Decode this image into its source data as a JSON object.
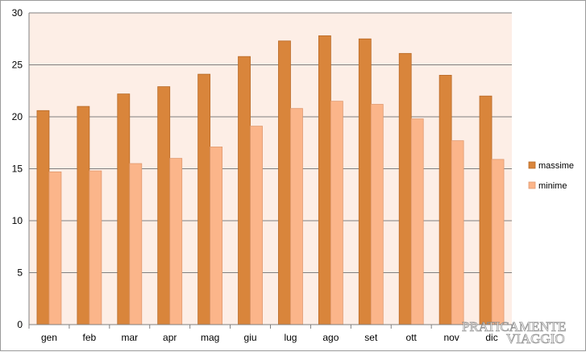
{
  "colors": {
    "plot_background": "#fdeee6",
    "gridline": "#7f7f7f",
    "massime": "#d9853b",
    "massime_border": "#b86a28",
    "minime": "#fbb58a",
    "minime_border": "#e09a70"
  },
  "chart_data": {
    "type": "bar",
    "title": "",
    "xlabel": "",
    "ylabel": "",
    "categories": [
      "gen",
      "feb",
      "mar",
      "apr",
      "mag",
      "giu",
      "lug",
      "ago",
      "set",
      "ott",
      "nov",
      "dic"
    ],
    "series": [
      {
        "name": "massime",
        "values": [
          20.6,
          21.0,
          22.2,
          22.9,
          24.1,
          25.8,
          27.3,
          27.8,
          27.5,
          26.1,
          24.0,
          22.0
        ]
      },
      {
        "name": "minime",
        "values": [
          14.7,
          14.8,
          15.5,
          16.0,
          17.1,
          19.1,
          20.8,
          21.5,
          21.2,
          19.8,
          17.7,
          15.9
        ]
      }
    ],
    "ylim": [
      0,
      30
    ],
    "yticks": [
      "0",
      "5",
      "10",
      "15",
      "20",
      "25",
      "30"
    ],
    "grid": true,
    "legend_position": "right"
  },
  "watermark": {
    "line1": "PRATICAMENTE",
    "line2": "VIAGGIO"
  }
}
